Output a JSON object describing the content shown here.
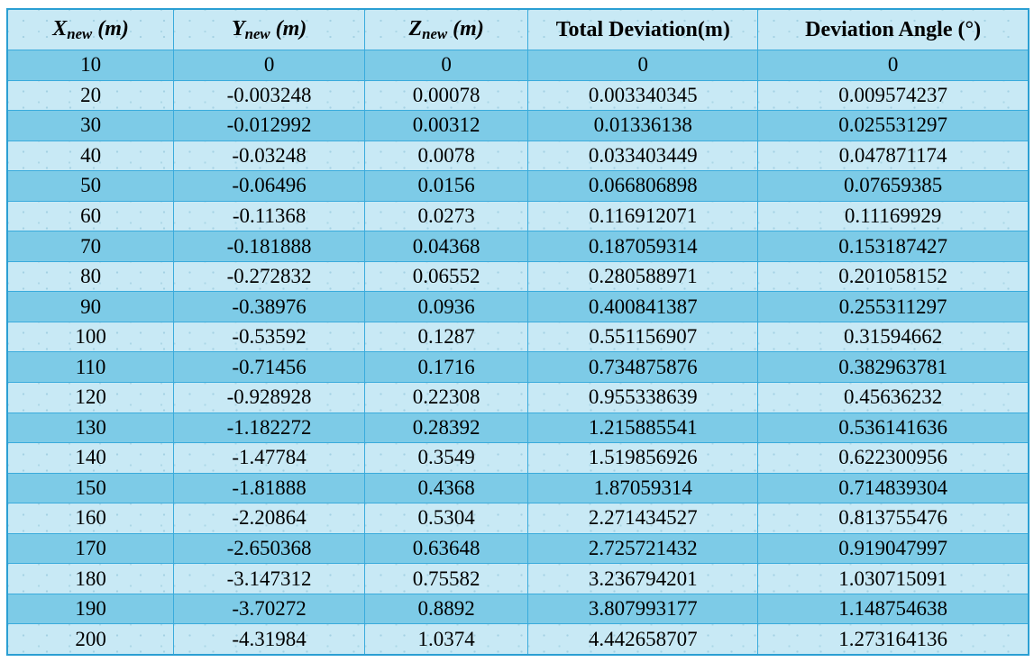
{
  "colors": {
    "outer_border": "#2b9fd3",
    "gridline": "#3aabdc",
    "row_dark": "#7dcbe7",
    "row_light": "#c8e9f5",
    "text": "#000000"
  },
  "chart_data": {
    "type": "table",
    "title": "",
    "columns": [
      {
        "kind": "math",
        "base": "X",
        "sub": "new",
        "unit": "(m)",
        "width_pct": 16.3
      },
      {
        "kind": "math",
        "base": "Y",
        "sub": "new",
        "unit": "(m)",
        "width_pct": 18.7
      },
      {
        "kind": "math",
        "base": "Z",
        "sub": "new",
        "unit": "(m)",
        "width_pct": 16.0
      },
      {
        "kind": "text",
        "label": "Total Deviation(m)",
        "width_pct": 22.5
      },
      {
        "kind": "text",
        "label": "Deviation Angle (°)",
        "width_pct": 26.5
      }
    ],
    "rows": [
      [
        "10",
        "0",
        "0",
        "0",
        "0"
      ],
      [
        "20",
        "-0.003248",
        "0.00078",
        "0.003340345",
        "0.009574237"
      ],
      [
        "30",
        "-0.012992",
        "0.00312",
        "0.01336138",
        "0.025531297"
      ],
      [
        "40",
        "-0.03248",
        "0.0078",
        "0.033403449",
        "0.047871174"
      ],
      [
        "50",
        "-0.06496",
        "0.0156",
        "0.066806898",
        "0.07659385"
      ],
      [
        "60",
        "-0.11368",
        "0.0273",
        "0.116912071",
        "0.11169929"
      ],
      [
        "70",
        "-0.181888",
        "0.04368",
        "0.187059314",
        "0.153187427"
      ],
      [
        "80",
        "-0.272832",
        "0.06552",
        "0.280588971",
        "0.201058152"
      ],
      [
        "90",
        "-0.38976",
        "0.0936",
        "0.400841387",
        "0.255311297"
      ],
      [
        "100",
        "-0.53592",
        "0.1287",
        "0.551156907",
        "0.31594662"
      ],
      [
        "110",
        "-0.71456",
        "0.1716",
        "0.734875876",
        "0.382963781"
      ],
      [
        "120",
        "-0.928928",
        "0.22308",
        "0.955338639",
        "0.45636232"
      ],
      [
        "130",
        "-1.182272",
        "0.28392",
        "1.215885541",
        "0.536141636"
      ],
      [
        "140",
        "-1.47784",
        "0.3549",
        "1.519856926",
        "0.622300956"
      ],
      [
        "150",
        "-1.81888",
        "0.4368",
        "1.87059314",
        "0.714839304"
      ],
      [
        "160",
        "-2.20864",
        "0.5304",
        "2.271434527",
        "0.813755476"
      ],
      [
        "170",
        "-2.650368",
        "0.63648",
        "2.725721432",
        "0.919047997"
      ],
      [
        "180",
        "-3.147312",
        "0.75582",
        "3.236794201",
        "1.030715091"
      ],
      [
        "190",
        "-3.70272",
        "0.8892",
        "3.807993177",
        "1.148754638"
      ],
      [
        "200",
        "-4.31984",
        "1.0374",
        "4.442658707",
        "1.273164136"
      ]
    ]
  }
}
